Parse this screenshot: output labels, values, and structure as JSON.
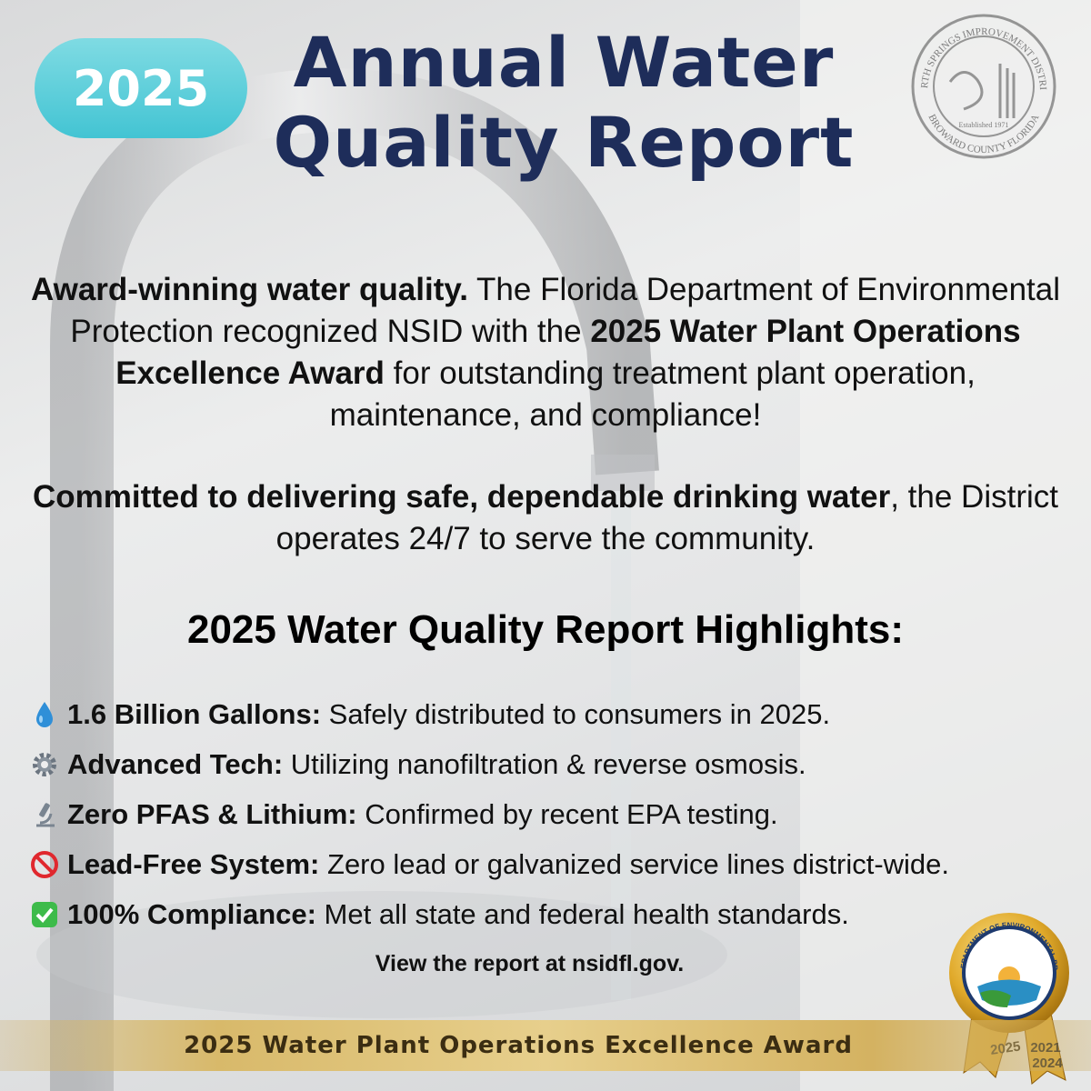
{
  "badge": "2025",
  "title": [
    "Annual Water",
    "Quality Report"
  ],
  "seal": {
    "top": "NORTH SPRINGS IMPROVEMENT DISTRICT",
    "middle": "Established 1971",
    "bottom": "BROWARD COUNTY FLORIDA"
  },
  "intro": [
    {
      "segments": [
        {
          "text": "Award-winning water quality.",
          "bold": true
        },
        {
          "text": " The Florida Department of Environmental Protection recognized NSID with the ",
          "bold": false
        },
        {
          "text": "2025 Water Plant Operations Excellence Award",
          "bold": true
        },
        {
          "text": " for outstanding treatment plant operation, maintenance, and compliance!",
          "bold": false
        }
      ]
    },
    {
      "segments": [
        {
          "text": "Committed to delivering safe, dependable drinking water",
          "bold": true
        },
        {
          "text": ", the District operates 24/7 to serve the community.",
          "bold": false
        }
      ]
    }
  ],
  "highlights": {
    "heading": "2025 Water Quality Report Highlights:",
    "items": [
      {
        "icon": "drop",
        "label": "1.6 Billion Gallons:",
        "text": " Safely distributed to consumers in 2025."
      },
      {
        "icon": "gear",
        "label": "Advanced Tech:",
        "text": " Utilizing nanofiltration & reverse osmosis."
      },
      {
        "icon": "microscope",
        "label": "Zero PFAS & Lithium:",
        "text": " Confirmed by recent EPA testing."
      },
      {
        "icon": "prohibited",
        "label": "Lead-Free System:",
        "text": " Zero lead or galvanized service lines district-wide."
      },
      {
        "icon": "check",
        "label": "100% Compliance:",
        "text": " Met all state and federal health standards."
      }
    ]
  },
  "link": "View the report at nsidfl.gov.",
  "banner": "2025 Water Plant Operations Excellence Award",
  "medal": {
    "text": "FLORIDA DEPARTMENT OF ENVIRONMENTAL PROTECTION",
    "ribbons": [
      "2025",
      "2021",
      "2024"
    ]
  }
}
